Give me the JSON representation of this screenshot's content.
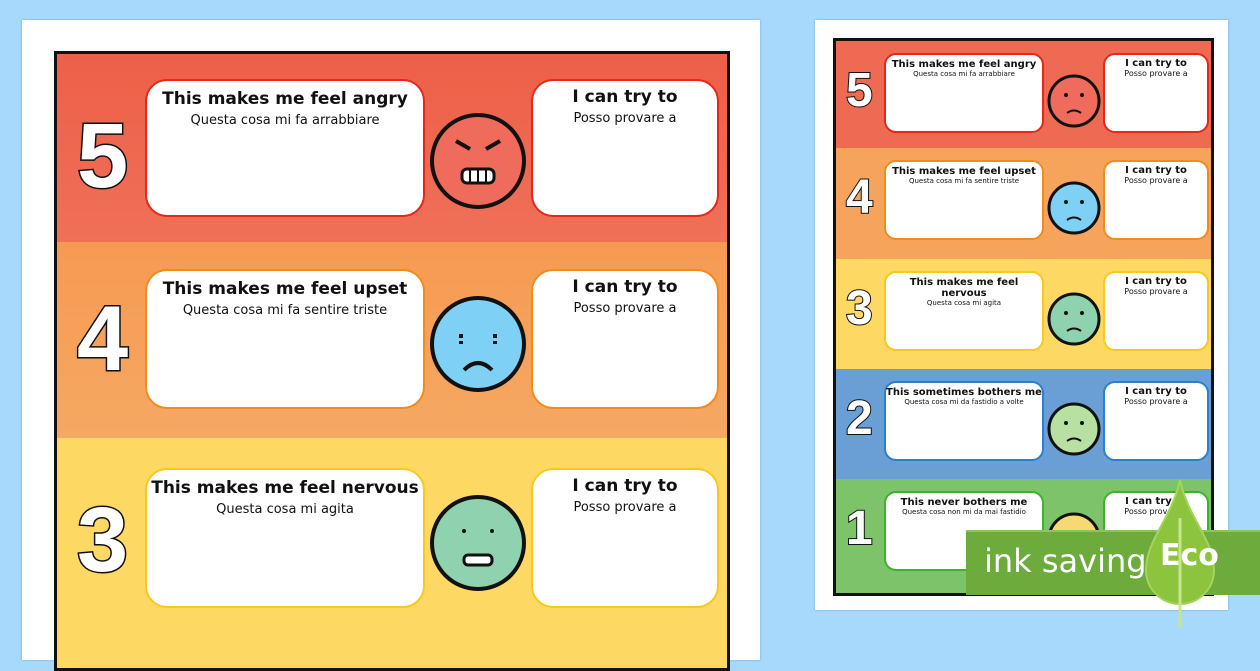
{
  "colors": {
    "background": "#a6d9fb",
    "level5": "#ee6a52",
    "level4": "#f6a35c",
    "level3": "#fdd862",
    "level2": "#6a9fd6",
    "level1": "#7cc36a",
    "eco": "#6cab3c"
  },
  "levels": [
    {
      "number": "5",
      "feel": "This makes me feel angry",
      "feel_it": "Questa cosa mi fa arrabbiare",
      "try": "I can try to",
      "try_it": "Posso provare a",
      "face": "angry-face",
      "face_color": "#ef6b5b",
      "border": "#e8261a"
    },
    {
      "number": "4",
      "feel": "This makes me feel upset",
      "feel_it": "Questa cosa mi fa sentire triste",
      "try": "I can try to",
      "try_it": "Posso provare a",
      "face": "crying-face",
      "face_color": "#7fd0f5",
      "border": "#f28a1c"
    },
    {
      "number": "3",
      "feel": "This makes me feel nervous",
      "feel_it": "Questa cosa mi agita",
      "try": "I can try to",
      "try_it": "Posso provare a",
      "face": "nervous-face",
      "face_color": "#8fd2b0",
      "border": "#f8c81e"
    },
    {
      "number": "2",
      "feel": "This sometimes bothers me",
      "feel_it": "Questa cosa mi da fastidio a volte",
      "try": "I can try to",
      "try_it": "Posso provare a",
      "face": "worried-face",
      "face_color": "#b8e0a2",
      "border": "#2a7fd0"
    },
    {
      "number": "1",
      "feel": "This never bothers me",
      "feel_it": "Questa cosa non mi da mai fastidio",
      "try": "I can try to",
      "try_it": "Posso provare a",
      "face": "calm-face",
      "face_color": "#f7d874",
      "border": "#3db32a"
    }
  ],
  "badge": {
    "label": "ink saving",
    "eco": "Eco"
  }
}
